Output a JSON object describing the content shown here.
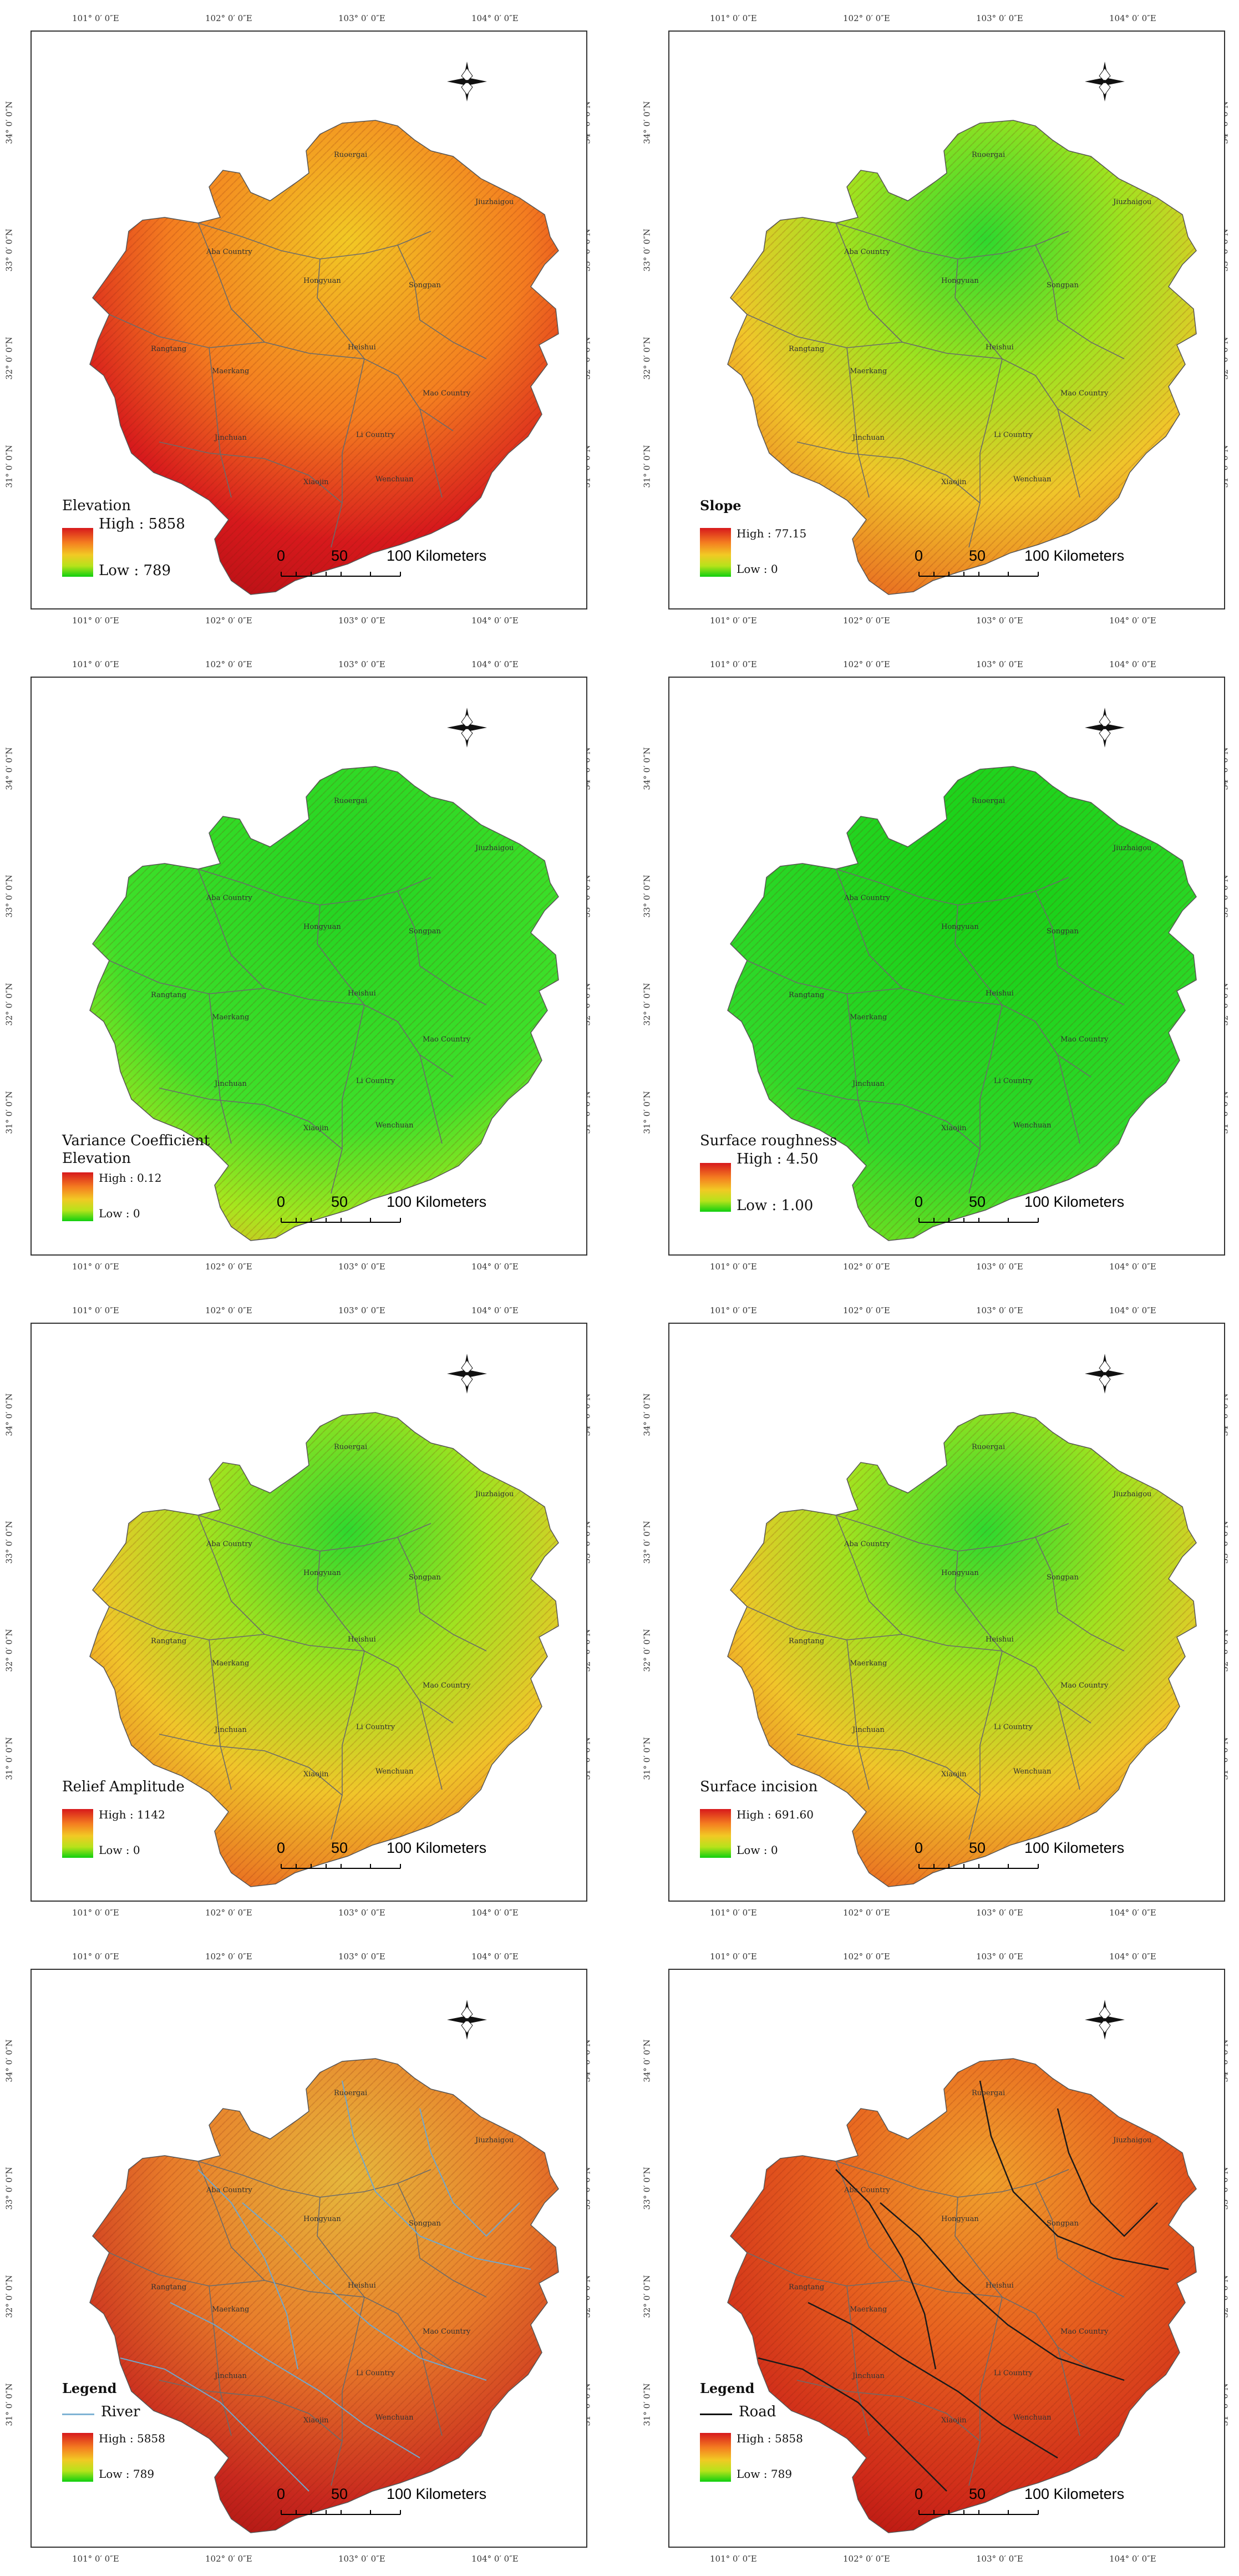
{
  "graticule": {
    "lon": [
      "101° 0′ 0″E",
      "102° 0′ 0″E",
      "103° 0′ 0″E",
      "104° 0′ 0″E"
    ],
    "lat": [
      "34° 0′ 0″N",
      "33° 0′ 0″N",
      "32° 0′ 0″N",
      "31° 0′ 0″N"
    ]
  },
  "places": [
    "Ruoergai",
    "Jiuzhaigou",
    "Aba Country",
    "Hongyuan",
    "Songpan",
    "Rangtang",
    "Heishui",
    "Maerkang",
    "Mao Country",
    "Li Country",
    "Jinchuan",
    "Xiaojin",
    "Wenchuan"
  ],
  "scale": {
    "ticks": [
      "0",
      "50",
      "100 Kilometers"
    ]
  },
  "panels": [
    {
      "id": "elevation",
      "title": "Elevation",
      "high": "High : 5858",
      "low": "Low : 789",
      "scheme": "elev"
    },
    {
      "id": "slope",
      "title": "Slope",
      "high": "High : 77.15",
      "low": "Low : 0",
      "scheme": "slope"
    },
    {
      "id": "variance",
      "title": "Variance Coefficient",
      "subtitle": "Elevation",
      "high": "High : 0.12",
      "low": "Low : 0",
      "scheme": "var"
    },
    {
      "id": "roughness",
      "title": "Surface roughness",
      "high": "High : 4.50",
      "low": "Low : 1.00",
      "scheme": "rough"
    },
    {
      "id": "relief",
      "title": "Relief Amplitude",
      "high": "High : 1142",
      "low": "Low : 0",
      "scheme": "slope"
    },
    {
      "id": "incision",
      "title": "Surface incision",
      "high": "High : 691.60",
      "low": "Low : 0",
      "scheme": "slope"
    },
    {
      "id": "river",
      "title": "Legend",
      "line_label": "River",
      "line_color": "#7fb3d5",
      "high": "High : 5858",
      "low": "Low : 789",
      "scheme": "elev2"
    },
    {
      "id": "road",
      "title": "Legend",
      "line_label": "Road",
      "line_color": "#111111",
      "high": "High : 5858",
      "low": "Low : 789",
      "scheme": "road"
    }
  ],
  "colors": {
    "ramp_high": "#d7191c",
    "ramp_mid": "#f2c924",
    "ramp_low": "#10d010"
  }
}
